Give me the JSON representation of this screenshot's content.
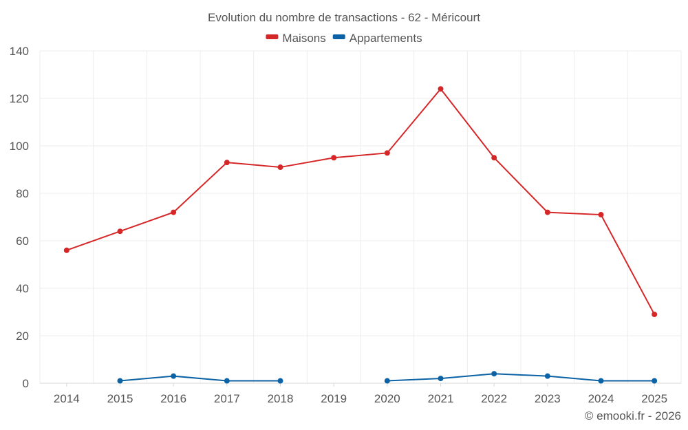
{
  "chart_data": {
    "type": "line",
    "title": "Evolution du nombre de transactions - 62 - Méricourt",
    "categories": [
      "2014",
      "2015",
      "2016",
      "2017",
      "2018",
      "2019",
      "2020",
      "2021",
      "2022",
      "2023",
      "2024",
      "2025"
    ],
    "series": [
      {
        "name": "Maisons",
        "color": "#d62728",
        "values": [
          56,
          64,
          72,
          93,
          91,
          95,
          97,
          124,
          95,
          72,
          71,
          29
        ]
      },
      {
        "name": "Appartements",
        "color": "#0b62a4",
        "values": [
          null,
          1,
          3,
          1,
          1,
          null,
          1,
          2,
          4,
          3,
          1,
          1
        ]
      }
    ],
    "yticks": [
      0,
      20,
      40,
      60,
      80,
      100,
      120,
      140
    ],
    "ylim": [
      0,
      140
    ],
    "grid": true,
    "legend_position": "top-center",
    "xlabel": "",
    "ylabel": ""
  },
  "credit": "© emooki.fr - 2026"
}
